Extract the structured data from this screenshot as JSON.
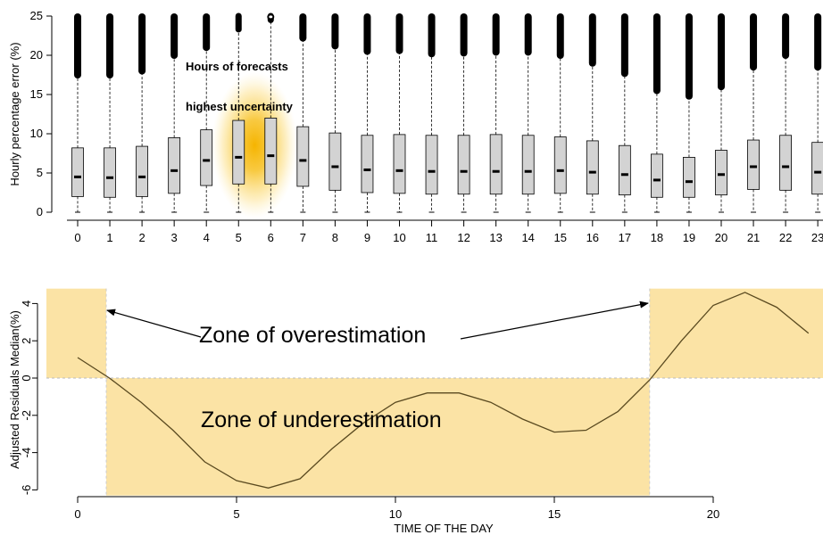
{
  "chart_data": [
    {
      "type": "box",
      "ylabel": "Hourly percentage error (%)",
      "xlabel": "",
      "categories": [
        "0",
        "1",
        "2",
        "3",
        "4",
        "5",
        "6",
        "7",
        "8",
        "9",
        "10",
        "11",
        "12",
        "13",
        "14",
        "15",
        "16",
        "17",
        "18",
        "19",
        "20",
        "21",
        "22",
        "23"
      ],
      "yticks": [
        "0",
        "5",
        "10",
        "15",
        "20",
        "25"
      ],
      "ylim": [
        0,
        25
      ],
      "boxes": [
        {
          "min": 0,
          "q1": 2.0,
          "median": 4.5,
          "q3": 8.2,
          "upper_whisker": 17.5
        },
        {
          "min": 0,
          "q1": 1.9,
          "median": 4.4,
          "q3": 8.2,
          "upper_whisker": 17.5
        },
        {
          "min": 0,
          "q1": 2.0,
          "median": 4.5,
          "q3": 8.4,
          "upper_whisker": 18.0
        },
        {
          "min": 0,
          "q1": 2.4,
          "median": 5.3,
          "q3": 9.5,
          "upper_whisker": 20.0
        },
        {
          "min": 0,
          "q1": 3.4,
          "median": 6.6,
          "q3": 10.5,
          "upper_whisker": 21.0
        },
        {
          "min": 0,
          "q1": 3.6,
          "median": 7.0,
          "q3": 11.7,
          "upper_whisker": 23.3
        },
        {
          "min": 0,
          "q1": 3.6,
          "median": 7.2,
          "q3": 12.0,
          "upper_whisker": 24.5
        },
        {
          "min": 0,
          "q1": 3.3,
          "median": 6.6,
          "q3": 10.9,
          "upper_whisker": 22.2
        },
        {
          "min": 0,
          "q1": 2.8,
          "median": 5.8,
          "q3": 10.1,
          "upper_whisker": 21.2
        },
        {
          "min": 0,
          "q1": 2.5,
          "median": 5.4,
          "q3": 9.8,
          "upper_whisker": 20.5
        },
        {
          "min": 0,
          "q1": 2.4,
          "median": 5.3,
          "q3": 9.9,
          "upper_whisker": 20.6
        },
        {
          "min": 0,
          "q1": 2.3,
          "median": 5.2,
          "q3": 9.8,
          "upper_whisker": 20.2
        },
        {
          "min": 0,
          "q1": 2.3,
          "median": 5.2,
          "q3": 9.8,
          "upper_whisker": 20.3
        },
        {
          "min": 0,
          "q1": 2.3,
          "median": 5.2,
          "q3": 9.9,
          "upper_whisker": 20.4
        },
        {
          "min": 0,
          "q1": 2.3,
          "median": 5.2,
          "q3": 9.8,
          "upper_whisker": 20.4
        },
        {
          "min": 0,
          "q1": 2.4,
          "median": 5.3,
          "q3": 9.6,
          "upper_whisker": 20.0
        },
        {
          "min": 0,
          "q1": 2.3,
          "median": 5.1,
          "q3": 9.1,
          "upper_whisker": 19.0
        },
        {
          "min": 0,
          "q1": 2.2,
          "median": 4.8,
          "q3": 8.5,
          "upper_whisker": 17.7
        },
        {
          "min": 0,
          "q1": 1.9,
          "median": 4.1,
          "q3": 7.4,
          "upper_whisker": 15.5
        },
        {
          "min": 0,
          "q1": 1.9,
          "median": 3.9,
          "q3": 7.0,
          "upper_whisker": 14.8
        },
        {
          "min": 0,
          "q1": 2.2,
          "median": 4.8,
          "q3": 7.9,
          "upper_whisker": 16.0
        },
        {
          "min": 0,
          "q1": 2.9,
          "median": 5.8,
          "q3": 9.2,
          "upper_whisker": 18.5
        },
        {
          "min": 0,
          "q1": 2.8,
          "median": 5.8,
          "q3": 9.8,
          "upper_whisker": 20.0
        },
        {
          "min": 0,
          "q1": 2.3,
          "median": 5.1,
          "q3": 8.9,
          "upper_whisker": 18.5
        }
      ],
      "outlier_cap": 25,
      "annotations": [
        "Hours of forecasts",
        "highest uncertainty"
      ],
      "highlight_hours": [
        5,
        6
      ],
      "highlight_color": "#f5b400"
    },
    {
      "type": "line",
      "xlabel": "TIME OF THE DAY",
      "ylabel": "Adjusted Residuals Median(%)",
      "xlim": [
        0,
        23
      ],
      "ylim": [
        -6,
        4.5
      ],
      "xticks": [
        "0",
        "5",
        "10",
        "15",
        "20"
      ],
      "yticks": [
        "-6",
        "-4",
        "-2",
        "0",
        "2",
        "4"
      ],
      "x": [
        0,
        1,
        2,
        3,
        4,
        5,
        6,
        7,
        8,
        9,
        10,
        11,
        12,
        13,
        14,
        15,
        16,
        17,
        18,
        19,
        20,
        21,
        22,
        23
      ],
      "y": [
        1.1,
        0.0,
        -1.3,
        -2.8,
        -4.5,
        -5.5,
        -5.9,
        -5.4,
        -3.8,
        -2.4,
        -1.3,
        -0.8,
        -0.8,
        -1.3,
        -2.2,
        -2.9,
        -2.8,
        -1.8,
        -0.1,
        2.0,
        3.9,
        4.6,
        3.8,
        2.4
      ],
      "zones": [
        {
          "label": "Zone of overestimation",
          "x_ranges": [
            [
              -1,
              0.9
            ],
            [
              18,
              23.5
            ]
          ],
          "y_range": [
            0,
            4.8
          ]
        },
        {
          "label": "Zone of underestimation",
          "x_ranges": [
            [
              0.9,
              18
            ]
          ],
          "y_range": [
            -6.3,
            0
          ]
        }
      ],
      "zone_color": "#fbe3a5",
      "line_color": "#5a4a20"
    }
  ]
}
